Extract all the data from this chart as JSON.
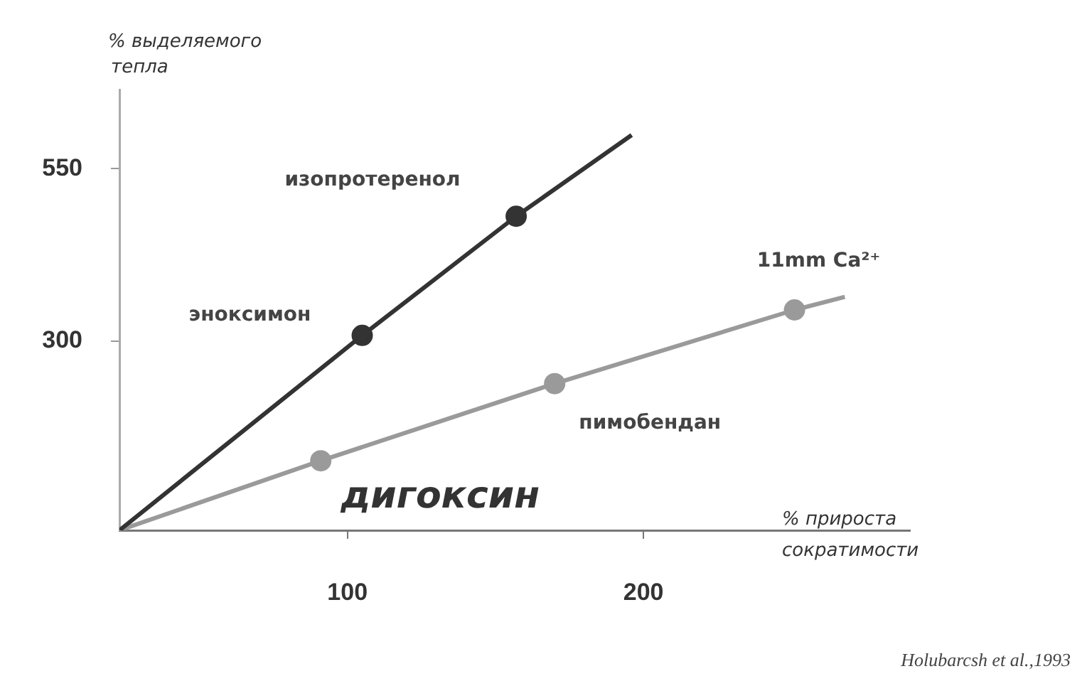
{
  "chart_data": {
    "type": "line",
    "xlabel": "% прироста сократимости",
    "ylabel": "% выделяемого тепла",
    "xlim": [
      23,
      290
    ],
    "ylim": [
      25,
      665
    ],
    "xticks": [
      100,
      200
    ],
    "yticks": [
      300,
      550
    ],
    "grid": false,
    "legend": false,
    "marker": "circle",
    "line_style": "solid",
    "series": [
      {
        "color": "#333333",
        "x": [
          23,
          105,
          157,
          196
        ],
        "values": [
          25,
          308,
          481,
          599
        ]
      },
      {
        "color": "#9a9a9a",
        "x": [
          23,
          91,
          170,
          251,
          268
        ],
        "values": [
          25,
          126,
          238,
          345,
          364
        ]
      }
    ],
    "annotations": [
      "изопротеренол",
      {
        "text": "эноксимон",
        "x": 105,
        "y": 308
      },
      {
        "text": "11mm Ca²⁺",
        "x": 251,
        "y": 345
      },
      {
        "text": "пимобендан",
        "x": 170,
        "y": 238
      },
      {
        "text": "дигоксин",
        "x": 91,
        "y": 126
      },
      "Holubarcsh et al.,1993"
    ]
  }
}
